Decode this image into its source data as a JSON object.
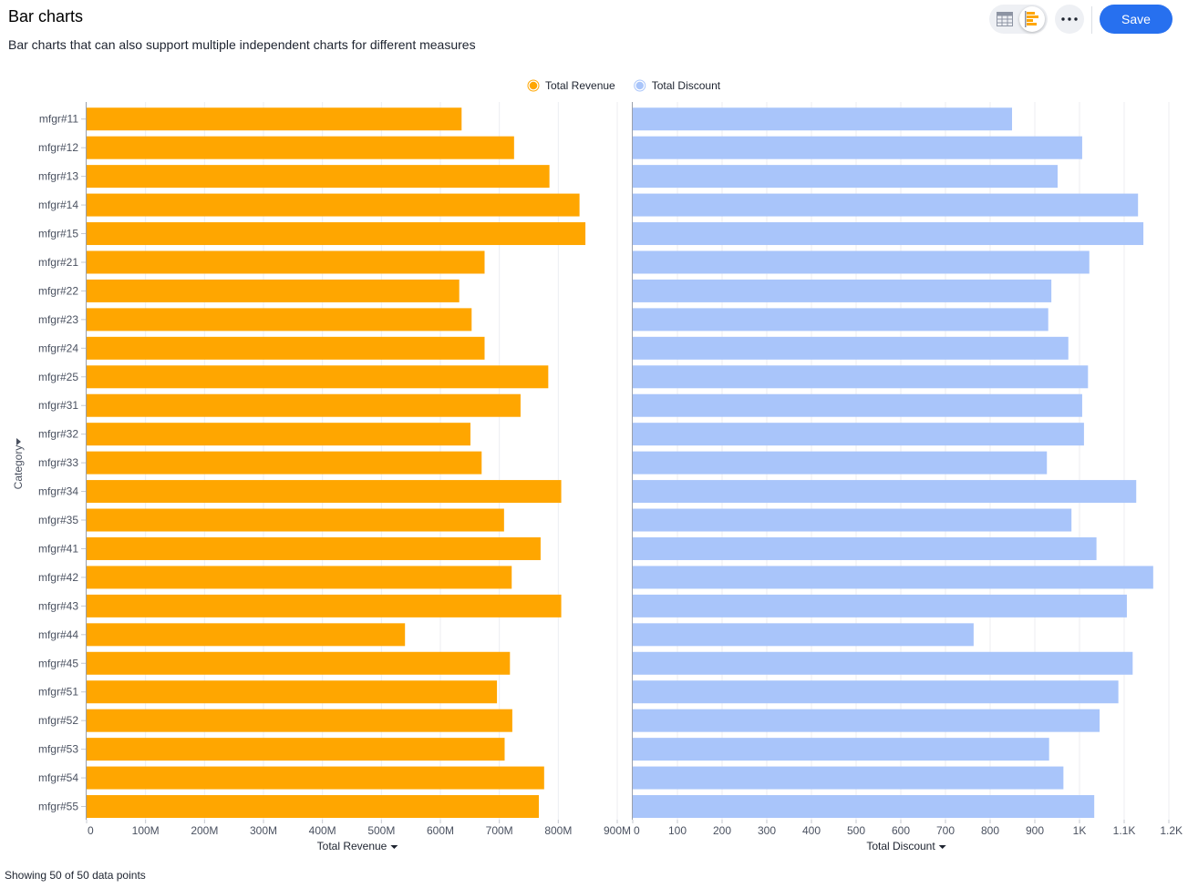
{
  "header": {
    "title": "Bar charts",
    "subtitle": "Bar charts that can also support multiple independent charts for different measures",
    "save_label": "Save",
    "icons": [
      "table-view-icon",
      "bar-chart-view-icon",
      "more-options-icon"
    ]
  },
  "footer": {
    "status": "Showing 50 of 50 data points"
  },
  "colors": {
    "revenue": "#ffa600",
    "discount": "#a9c5fa",
    "accent": "#2770ef"
  },
  "chart_data": {
    "type": "bar",
    "orientation": "horizontal",
    "legend_position": "top-center",
    "grid": true,
    "ylabel": "Category",
    "categories": [
      "mfgr#11",
      "mfgr#12",
      "mfgr#13",
      "mfgr#14",
      "mfgr#15",
      "mfgr#21",
      "mfgr#22",
      "mfgr#23",
      "mfgr#24",
      "mfgr#25",
      "mfgr#31",
      "mfgr#32",
      "mfgr#33",
      "mfgr#34",
      "mfgr#35",
      "mfgr#41",
      "mfgr#42",
      "mfgr#43",
      "mfgr#44",
      "mfgr#45",
      "mfgr#51",
      "mfgr#52",
      "mfgr#53",
      "mfgr#54",
      "mfgr#55"
    ],
    "series": [
      {
        "name": "Total Revenue",
        "xlabel": "Total Revenue",
        "xlim": [
          0,
          900000000
        ],
        "ticks": [
          "0",
          "100M",
          "200M",
          "300M",
          "400M",
          "500M",
          "600M",
          "700M",
          "800M",
          "900M"
        ],
        "values": [
          636000000,
          725000000,
          785000000,
          836000000,
          846000000,
          675000000,
          632000000,
          653000000,
          675000000,
          783000000,
          736000000,
          651000000,
          670000000,
          805000000,
          708000000,
          770000000,
          721000000,
          805000000,
          540000000,
          718000000,
          696000000,
          722000000,
          709000000,
          776000000,
          767000000
        ]
      },
      {
        "name": "Total Discount",
        "xlabel": "Total Discount",
        "xlim": [
          0,
          1200
        ],
        "ticks": [
          "0",
          "100",
          "200",
          "300",
          "400",
          "500",
          "600",
          "700",
          "800",
          "900",
          "1K",
          "1.1K",
          "1.2K"
        ],
        "values": [
          849,
          1006,
          951,
          1131,
          1143,
          1022,
          937,
          930,
          975,
          1019,
          1006,
          1010,
          927,
          1127,
          982,
          1038,
          1165,
          1106,
          763,
          1119,
          1087,
          1045,
          932,
          964,
          1033
        ]
      }
    ]
  }
}
